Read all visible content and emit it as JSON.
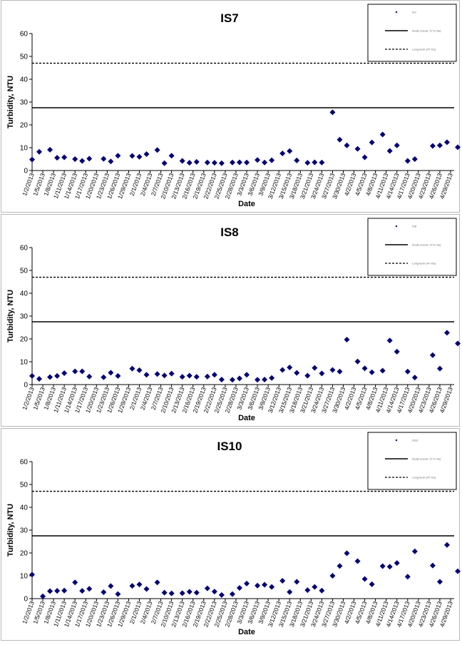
{
  "chart_data": [
    {
      "type": "scatter",
      "title": "IS7",
      "xlabel": "Date",
      "ylabel": "Turbidity, NTU",
      "ylim": [
        0,
        60
      ],
      "yticks": [
        0,
        10,
        20,
        30,
        40,
        50,
        60
      ],
      "xlim": [
        "1/2/2013",
        "4/30/2013"
      ],
      "xticks": [
        "1/2/2013",
        "1/5/2013",
        "1/8/2013",
        "1/11/2013",
        "1/14/2013",
        "1/17/2013",
        "1/20/2013",
        "1/23/2013",
        "1/26/2013",
        "1/29/2013",
        "2/1/2013",
        "2/4/2013",
        "2/7/2013",
        "2/10/2013",
        "2/13/2013",
        "2/16/2013",
        "2/19/2013",
        "2/22/2013",
        "2/25/2013",
        "2/28/2013",
        "3/3/2013",
        "3/6/2013",
        "3/9/2013",
        "3/12/2013",
        "3/15/2013",
        "3/18/2013",
        "3/21/2013",
        "3/24/2013",
        "3/27/2013",
        "3/30/2013",
        "4/2/2013",
        "4/5/2013",
        "4/8/2013",
        "4/11/2013",
        "4/14/2013",
        "4/17/2013",
        "4/20/2013",
        "4/23/2013",
        "4/26/2013",
        "4/29/2013"
      ],
      "legend_position": "top-right",
      "series": [
        {
          "name": "IS7",
          "marker": "diamond",
          "color": "#000080",
          "points": [
            [
              "1/2/2013",
              4.8
            ],
            [
              "1/4/2013",
              8.2
            ],
            [
              "1/7/2013",
              9.1
            ],
            [
              "1/9/2013",
              5.6
            ],
            [
              "1/11/2013",
              5.8
            ],
            [
              "1/14/2013",
              5.0
            ],
            [
              "1/16/2013",
              4.2
            ],
            [
              "1/18/2013",
              5.2
            ],
            [
              "1/22/2013",
              5.1
            ],
            [
              "1/24/2013",
              4.0
            ],
            [
              "1/26/2013",
              6.5
            ],
            [
              "1/30/2013",
              6.4
            ],
            [
              "2/1/2013",
              6.0
            ],
            [
              "2/3/2013",
              7.2
            ],
            [
              "2/6/2013",
              9.0
            ],
            [
              "2/8/2013",
              3.2
            ],
            [
              "2/10/2013",
              6.5
            ],
            [
              "2/13/2013",
              4.2
            ],
            [
              "2/15/2013",
              3.4
            ],
            [
              "2/17/2013",
              3.8
            ],
            [
              "2/20/2013",
              3.5
            ],
            [
              "2/22/2013",
              3.4
            ],
            [
              "2/24/2013",
              3.2
            ],
            [
              "2/27/2013",
              3.5
            ],
            [
              "3/1/2013",
              3.6
            ],
            [
              "3/3/2013",
              3.5
            ],
            [
              "3/6/2013",
              4.6
            ],
            [
              "3/8/2013",
              3.5
            ],
            [
              "3/10/2013",
              4.5
            ],
            [
              "3/13/2013",
              7.5
            ],
            [
              "3/15/2013",
              8.5
            ],
            [
              "3/17/2013",
              4.4
            ],
            [
              "3/20/2013",
              3.4
            ],
            [
              "3/22/2013",
              3.6
            ],
            [
              "3/24/2013",
              3.5
            ],
            [
              "3/27/2013",
              25.5
            ],
            [
              "3/29/2013",
              13.5
            ],
            [
              "3/31/2013",
              11.0
            ],
            [
              "4/3/2013",
              9.5
            ],
            [
              "4/5/2013",
              5.8
            ],
            [
              "4/7/2013",
              12.3
            ],
            [
              "4/10/2013",
              15.8
            ],
            [
              "4/12/2013",
              8.6
            ],
            [
              "4/14/2013",
              11.0
            ],
            [
              "4/17/2013",
              4.2
            ],
            [
              "4/19/2013",
              5.0
            ],
            [
              "4/24/2013",
              10.8
            ],
            [
              "4/26/2013",
              11.0
            ],
            [
              "4/28/2013",
              12.4
            ],
            [
              "5/1/2013",
              10.2
            ]
          ]
        },
        {
          "name": "Acute (Level, 27.5 ntu)",
          "line": "solid",
          "value": 27.5
        },
        {
          "name": "Long-term (47 ntu)",
          "line": "dashed",
          "value": 47
        }
      ]
    },
    {
      "type": "scatter",
      "title": "IS8",
      "xlabel": "Date",
      "ylabel": "Turbidity, NTU",
      "ylim": [
        0,
        60
      ],
      "yticks": [
        0,
        10,
        20,
        30,
        40,
        50,
        60
      ],
      "xlim": [
        "1/2/2013",
        "4/30/2013"
      ],
      "xticks": [
        "1/2/2013",
        "1/5/2013",
        "1/8/2013",
        "1/11/2013",
        "1/14/2013",
        "1/17/2013",
        "1/20/2013",
        "1/23/2013",
        "1/26/2013",
        "1/29/2013",
        "2/1/2013",
        "2/4/2013",
        "2/7/2013",
        "2/10/2013",
        "2/13/2013",
        "2/16/2013",
        "2/19/2013",
        "2/22/2013",
        "2/25/2013",
        "2/28/2013",
        "3/3/2013",
        "3/6/2013",
        "3/9/2013",
        "3/12/2013",
        "3/15/2013",
        "3/18/2013",
        "3/21/2013",
        "3/24/2013",
        "3/27/2013",
        "3/30/2013",
        "4/2/2013",
        "4/5/2013",
        "4/8/2013",
        "4/11/2013",
        "4/14/2013",
        "4/17/2013",
        "4/20/2013",
        "4/23/2013",
        "4/26/2013",
        "4/29/2013"
      ],
      "legend_position": "top-right",
      "series": [
        {
          "name": "IS8",
          "marker": "diamond",
          "color": "#000080",
          "points": [
            [
              "1/2/2013",
              3.8
            ],
            [
              "1/4/2013",
              2.5
            ],
            [
              "1/7/2013",
              3.3
            ],
            [
              "1/9/2013",
              3.8
            ],
            [
              "1/11/2013",
              5.0
            ],
            [
              "1/14/2013",
              5.8
            ],
            [
              "1/16/2013",
              5.8
            ],
            [
              "1/18/2013",
              3.5
            ],
            [
              "1/22/2013",
              3.2
            ],
            [
              "1/24/2013",
              5.2
            ],
            [
              "1/26/2013",
              3.8
            ],
            [
              "1/30/2013",
              7.0
            ],
            [
              "2/1/2013",
              6.3
            ],
            [
              "2/3/2013",
              4.3
            ],
            [
              "2/6/2013",
              4.6
            ],
            [
              "2/8/2013",
              4.0
            ],
            [
              "2/10/2013",
              4.8
            ],
            [
              "2/13/2013",
              3.4
            ],
            [
              "2/15/2013",
              3.9
            ],
            [
              "2/17/2013",
              3.4
            ],
            [
              "2/20/2013",
              3.5
            ],
            [
              "2/22/2013",
              4.3
            ],
            [
              "2/24/2013",
              2.2
            ],
            [
              "2/27/2013",
              2.1
            ],
            [
              "3/1/2013",
              2.7
            ],
            [
              "3/3/2013",
              4.3
            ],
            [
              "3/6/2013",
              2.1
            ],
            [
              "3/8/2013",
              2.2
            ],
            [
              "3/10/2013",
              2.9
            ],
            [
              "3/13/2013",
              6.4
            ],
            [
              "3/15/2013",
              7.5
            ],
            [
              "3/17/2013",
              5.1
            ],
            [
              "3/20/2013",
              3.9
            ],
            [
              "3/22/2013",
              7.3
            ],
            [
              "3/24/2013",
              4.9
            ],
            [
              "3/27/2013",
              6.4
            ],
            [
              "3/29/2013",
              5.7
            ],
            [
              "3/31/2013",
              19.7
            ],
            [
              "4/3/2013",
              10.1
            ],
            [
              "4/5/2013",
              7.1
            ],
            [
              "4/7/2013",
              5.4
            ],
            [
              "4/10/2013",
              6.1
            ],
            [
              "4/12/2013",
              19.3
            ],
            [
              "4/14/2013",
              14.4
            ],
            [
              "4/17/2013",
              5.7
            ],
            [
              "4/19/2013",
              3.1
            ],
            [
              "4/24/2013",
              12.9
            ],
            [
              "4/26/2013",
              7.0
            ],
            [
              "4/28/2013",
              22.7
            ],
            [
              "5/1/2013",
              18.0
            ]
          ]
        },
        {
          "name": "Acute (Level, 27.5 ntu)",
          "line": "solid",
          "value": 27.5
        },
        {
          "name": "Long-term (47 ntu)",
          "line": "dashed",
          "value": 47
        }
      ]
    },
    {
      "type": "scatter",
      "title": "IS10",
      "xlabel": "Date",
      "ylabel": "Turbidity, NTU",
      "ylim": [
        0,
        60
      ],
      "yticks": [
        0,
        10,
        20,
        30,
        40,
        50,
        60
      ],
      "xlim": [
        "1/2/2013",
        "4/30/2013"
      ],
      "xticks": [
        "1/2/2013",
        "1/5/2013",
        "1/8/2013",
        "1/11/2013",
        "1/14/2013",
        "1/17/2013",
        "1/20/2013",
        "1/23/2013",
        "1/26/2013",
        "1/29/2013",
        "2/1/2013",
        "2/4/2013",
        "2/7/2013",
        "2/10/2013",
        "2/13/2013",
        "2/16/2013",
        "2/19/2013",
        "2/22/2013",
        "2/25/2013",
        "2/28/2013",
        "3/3/2013",
        "3/6/2013",
        "3/9/2013",
        "3/12/2013",
        "3/15/2013",
        "3/18/2013",
        "3/21/2013",
        "3/24/2013",
        "3/27/2013",
        "3/30/2013",
        "4/2/2013",
        "4/5/2013",
        "4/8/2013",
        "4/11/2013",
        "4/14/2013",
        "4/17/2013",
        "4/20/2013",
        "4/23/2013",
        "4/26/2013",
        "4/29/2013"
      ],
      "legend_position": "top-right",
      "series": [
        {
          "name": "IS10",
          "marker": "diamond",
          "color": "#000080",
          "points": [
            [
              "1/2/2013",
              10.5
            ],
            [
              "1/5/2013",
              1.0
            ],
            [
              "1/7/2013",
              3.3
            ],
            [
              "1/9/2013",
              3.4
            ],
            [
              "1/11/2013",
              3.5
            ],
            [
              "1/14/2013",
              7.1
            ],
            [
              "1/16/2013",
              3.4
            ],
            [
              "1/18/2013",
              4.3
            ],
            [
              "1/22/2013",
              2.8
            ],
            [
              "1/24/2013",
              5.5
            ],
            [
              "1/26/2013",
              2.0
            ],
            [
              "1/30/2013",
              5.6
            ],
            [
              "2/1/2013",
              6.2
            ],
            [
              "2/3/2013",
              4.2
            ],
            [
              "2/6/2013",
              7.1
            ],
            [
              "2/8/2013",
              2.6
            ],
            [
              "2/10/2013",
              2.3
            ],
            [
              "2/13/2013",
              2.4
            ],
            [
              "2/15/2013",
              3.0
            ],
            [
              "2/17/2013",
              2.6
            ],
            [
              "2/20/2013",
              4.5
            ],
            [
              "2/22/2013",
              3.1
            ],
            [
              "2/24/2013",
              1.6
            ],
            [
              "2/27/2013",
              2.0
            ],
            [
              "3/1/2013",
              4.7
            ],
            [
              "3/3/2013",
              6.6
            ],
            [
              "3/6/2013",
              5.7
            ],
            [
              "3/8/2013",
              6.1
            ],
            [
              "3/10/2013",
              5.1
            ],
            [
              "3/13/2013",
              7.8
            ],
            [
              "3/15/2013",
              2.9
            ],
            [
              "3/17/2013",
              7.4
            ],
            [
              "3/20/2013",
              3.7
            ],
            [
              "3/22/2013",
              5.1
            ],
            [
              "3/24/2013",
              3.5
            ],
            [
              "3/27/2013",
              10.0
            ],
            [
              "3/29/2013",
              14.3
            ],
            [
              "3/31/2013",
              19.9
            ],
            [
              "4/3/2013",
              16.4
            ],
            [
              "4/5/2013",
              8.6
            ],
            [
              "4/7/2013",
              6.3
            ],
            [
              "4/10/2013",
              14.2
            ],
            [
              "4/12/2013",
              14.0
            ],
            [
              "4/14/2013",
              15.6
            ],
            [
              "4/17/2013",
              9.6
            ],
            [
              "4/19/2013",
              20.7
            ],
            [
              "4/24/2013",
              14.5
            ],
            [
              "4/26/2013",
              7.4
            ],
            [
              "4/28/2013",
              23.5
            ],
            [
              "5/1/2013",
              12.0
            ]
          ]
        },
        {
          "name": "Acute (Level, 27.5 ntu)",
          "line": "solid",
          "value": 27.5
        },
        {
          "name": "Long-term (47 ntu)",
          "line": "dashed",
          "value": 47
        }
      ]
    }
  ]
}
